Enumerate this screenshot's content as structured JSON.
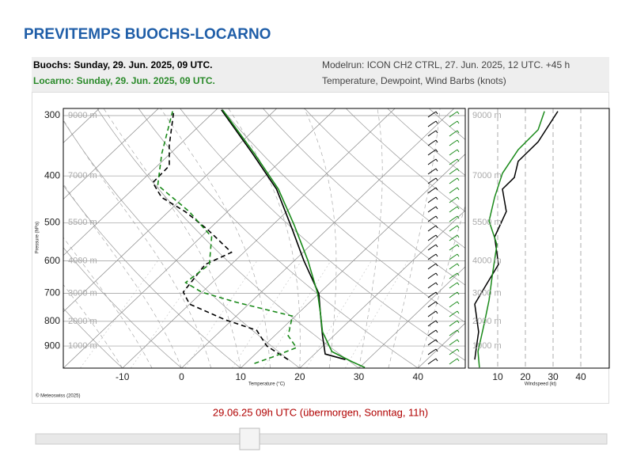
{
  "header": {
    "title": "PREVITEMPS BUOCHS-LOCARNO",
    "station1": "Buochs: Sunday, 29. Jun. 2025, 09 UTC.",
    "station2": "Locarno: Sunday, 29. Jun. 2025, 09 UTC.",
    "modelrun": "Modelrun: ICON CH2 CTRL, 27. Jun. 2025, 12 UTC. +45 h",
    "content": "Temperature, Dewpoint, Wind Barbs (knots)"
  },
  "copyright": "© Meteoswiss (2025)",
  "footer": {
    "time": "29.06.25 09h UTC (übermorgen, Sonntag, 11h)"
  },
  "chart_data": [
    {
      "type": "skewt",
      "xlabel": "Temperature (°C)",
      "ylabel": "Pressure (hPa)",
      "xlim": [
        -20,
        48
      ],
      "ylim": [
        1000,
        290
      ],
      "log_y": true,
      "xticks": [
        -10,
        0,
        10,
        20,
        30,
        40
      ],
      "yticks": [
        300,
        400,
        500,
        600,
        700,
        800,
        900
      ],
      "height_labels": [
        "9000 m",
        "7000 m",
        "5500 m",
        "4000 m",
        "3000 m",
        "2000 m",
        "1000 m"
      ],
      "series": [
        {
          "color": "#000000",
          "style": "solid",
          "pressure": [
            960,
            935,
            857,
            765,
            701,
            599,
            515,
            426,
            360,
            292
          ],
          "values": [
            26.2,
            21.8,
            18.1,
            13.5,
            10.0,
            1.6,
            -6.0,
            -15.7,
            -26.0,
            -39.1
          ]
        },
        {
          "color": "#000000",
          "style": "dashed",
          "pressure": [
            960,
            900,
            835,
            794,
            737,
            696,
            610,
            576,
            515,
            474,
            443,
            413,
            381,
            346,
            294
          ],
          "values": [
            16.5,
            10.5,
            6.0,
            -1.2,
            -10.0,
            -13.2,
            -14.4,
            -12.1,
            -20.4,
            -27.2,
            -33.7,
            -37.8,
            -38.0,
            -41.6,
            -46.9
          ]
        },
        {
          "color": "#1a8a1a",
          "style": "solid",
          "pressure": [
            997,
            970,
            924,
            841,
            765,
            701,
            599,
            505,
            426,
            360,
            292
          ],
          "values": [
            30.9,
            27.7,
            22.5,
            17.4,
            13.5,
            9.8,
            2.3,
            -6.4,
            -15.4,
            -25.7,
            -38.9
          ]
        },
        {
          "color": "#1a8a1a",
          "style": "dashed",
          "pressure": [
            978,
            949,
            907,
            857,
            780,
            731,
            696,
            665,
            610,
            535,
            474,
            418,
            360,
            294
          ],
          "values": [
            11.5,
            13.4,
            15.8,
            12.3,
            9.5,
            -2.3,
            -10.1,
            -14.5,
            -13.7,
            -18.2,
            -26.5,
            -36.5,
            -41.4,
            -47.1
          ]
        }
      ]
    },
    {
      "type": "windprofile",
      "xlabel": "Windspeed (kt)",
      "xlim": [
        0,
        50
      ],
      "xticks": [
        10,
        20,
        30,
        40
      ],
      "ylim": [
        1000,
        290
      ],
      "log_y": true,
      "series": [
        {
          "color": "#000000",
          "pressure": [
            960,
            907,
            841,
            737,
            670,
            610,
            535,
            474,
            426,
            403,
            373,
            340,
            294
          ],
          "values": [
            1.7,
            2.3,
            3.1,
            1.7,
            6.0,
            10.3,
            8.9,
            13.1,
            11.7,
            16.0,
            17.4,
            24.6,
            31.7
          ]
        },
        {
          "color": "#1a8a1a",
          "pressure": [
            997,
            924,
            810,
            723,
            646,
            555,
            496,
            443,
            395,
            353,
            321,
            294
          ],
          "values": [
            3.4,
            2.9,
            5.1,
            6.9,
            8.0,
            9.7,
            6.9,
            8.9,
            11.7,
            17.4,
            24.6,
            26.9
          ]
        }
      ]
    }
  ]
}
